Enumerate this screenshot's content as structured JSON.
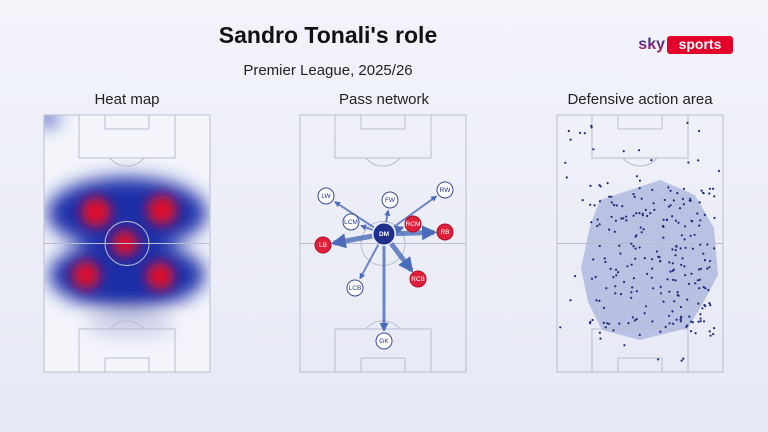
{
  "header": {
    "title": "Sandro Tonali's role",
    "subtitle": "Premier League, 2025/26"
  },
  "brand": {
    "sky": "sky",
    "sports": "sports"
  },
  "panels": [
    {
      "title": "Heat map"
    },
    {
      "title": "Pass network",
      "nodes": [
        "LW",
        "FW",
        "RW",
        "LCM",
        "RCM",
        "DM",
        "LB",
        "RB",
        "RCB",
        "LCB",
        "GK"
      ]
    },
    {
      "title": "Defensive action area"
    }
  ]
}
